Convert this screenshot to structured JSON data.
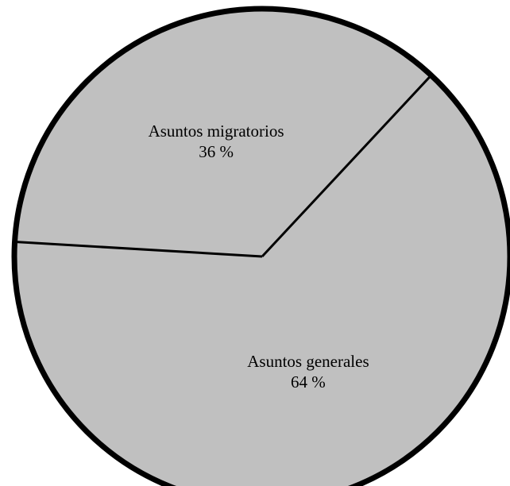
{
  "chart_data": {
    "type": "pie",
    "title": "",
    "start_angle_deg": 47,
    "direction": "counterclockwise",
    "slices": [
      {
        "label": "Asuntos migratorios",
        "value": 36,
        "value_label": "36 %"
      },
      {
        "label": "Asuntos generales",
        "value": 64,
        "value_label": "64 %"
      }
    ],
    "colors": {
      "fill": "#c0c0c0",
      "border": "#000000",
      "divider": "#000000",
      "text": "#000000"
    }
  }
}
